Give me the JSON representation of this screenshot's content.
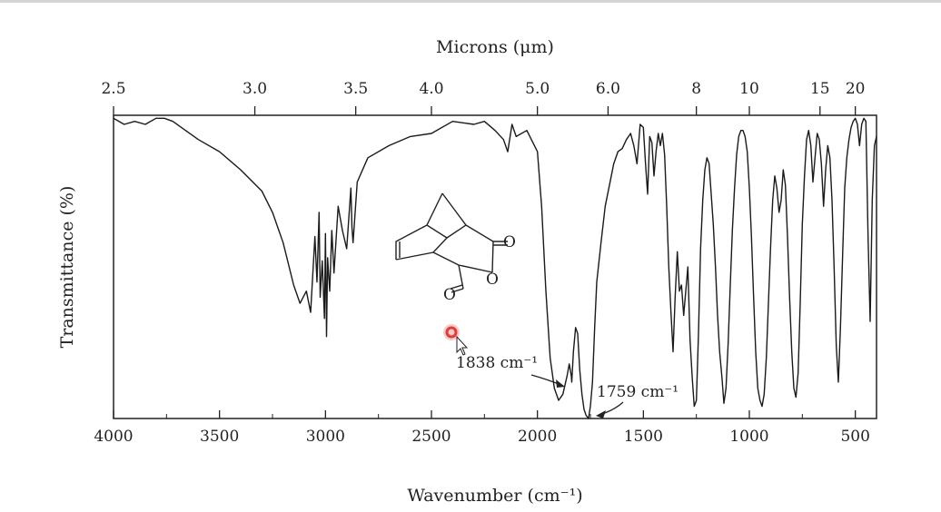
{
  "chart_data": {
    "type": "line",
    "title": "",
    "xlabel": "Wavenumber (cm⁻¹)",
    "ylabel": "Transmittance (%)",
    "top_axis_label": "Microns (μm)",
    "x_reversed": true,
    "xlim": [
      4000,
      400
    ],
    "ylim": [
      0,
      100
    ],
    "grid": false,
    "x_ticks": [
      4000,
      3500,
      3000,
      2500,
      2000,
      1500,
      1000,
      500
    ],
    "top_ticks": [
      "2.5",
      "3.0",
      "3.5",
      "4.0",
      "5.0",
      "6.0",
      "8",
      "10",
      "15",
      "20"
    ],
    "series": [
      {
        "x": [
          4000,
          3950,
          3900,
          3850,
          3800,
          3760,
          3720,
          3680,
          3600,
          3500,
          3400,
          3300,
          3250,
          3200,
          3150,
          3120,
          3090,
          3070,
          3050,
          3040,
          3030,
          3025,
          3015,
          3005,
          3000,
          2995,
          2990,
          2980,
          2970,
          2960,
          2940,
          2920,
          2900,
          2880,
          2875,
          2870,
          2850,
          2800,
          2700,
          2600,
          2500,
          2400,
          2300,
          2250,
          2200,
          2160,
          2140,
          2120,
          2100,
          2050,
          2000,
          1980,
          1960,
          1940,
          1920,
          1900,
          1880,
          1860,
          1850,
          1840,
          1838,
          1835,
          1830,
          1820,
          1810,
          1800,
          1790,
          1780,
          1770,
          1759,
          1750,
          1740,
          1730,
          1720,
          1700,
          1680,
          1660,
          1640,
          1620,
          1600,
          1580,
          1560,
          1545,
          1530,
          1515,
          1500,
          1490,
          1480,
          1470,
          1460,
          1450,
          1440,
          1430,
          1420,
          1410,
          1400,
          1390,
          1380,
          1370,
          1360,
          1350,
          1340,
          1330,
          1320,
          1310,
          1300,
          1290,
          1280,
          1270,
          1260,
          1250,
          1240,
          1230,
          1220,
          1210,
          1200,
          1190,
          1180,
          1170,
          1160,
          1150,
          1140,
          1130,
          1120,
          1110,
          1100,
          1090,
          1080,
          1070,
          1060,
          1050,
          1040,
          1030,
          1020,
          1010,
          1000,
          990,
          980,
          970,
          960,
          950,
          940,
          930,
          920,
          910,
          900,
          890,
          880,
          870,
          860,
          850,
          840,
          830,
          820,
          810,
          800,
          790,
          780,
          770,
          760,
          750,
          740,
          730,
          720,
          710,
          700,
          690,
          680,
          670,
          660,
          650,
          640,
          630,
          620,
          610,
          600,
          590,
          580,
          570,
          560,
          550,
          540,
          530,
          520,
          510,
          500,
          490,
          480,
          470,
          460,
          450,
          440,
          430,
          420,
          410,
          400
        ],
        "y": [
          99,
          97,
          98,
          97,
          99,
          99,
          98,
          96,
          92,
          88,
          82,
          75,
          68,
          58,
          44,
          38,
          42,
          35,
          60,
          45,
          68,
          40,
          52,
          33,
          61,
          27,
          53,
          42,
          62,
          48,
          70,
          62,
          56,
          76,
          63,
          58,
          78,
          86,
          90,
          93,
          94,
          98,
          97,
          98,
          95,
          92,
          88,
          97,
          93,
          95,
          88,
          70,
          42,
          20,
          10,
          6,
          8,
          14,
          18,
          14,
          12,
          16,
          22,
          30,
          28,
          16,
          8,
          3,
          1,
          0,
          4,
          12,
          30,
          45,
          58,
          70,
          77,
          84,
          88,
          89,
          92,
          94,
          90,
          84,
          97,
          96,
          84,
          74,
          93,
          91,
          80,
          88,
          94,
          90,
          94,
          87,
          70,
          50,
          35,
          22,
          40,
          55,
          42,
          44,
          34,
          42,
          50,
          26,
          14,
          4,
          6,
          28,
          56,
          72,
          82,
          86,
          84,
          74,
          64,
          50,
          34,
          22,
          14,
          5,
          10,
          25,
          44,
          62,
          76,
          87,
          93,
          95,
          95,
          93,
          88,
          76,
          60,
          40,
          22,
          10,
          6,
          4,
          8,
          20,
          38,
          56,
          72,
          80,
          76,
          68,
          72,
          82,
          77,
          60,
          40,
          22,
          10,
          7,
          15,
          38,
          64,
          80,
          92,
          95,
          90,
          78,
          86,
          94,
          92,
          84,
          70,
          82,
          90,
          86,
          72,
          50,
          24,
          12,
          30,
          54,
          76,
          86,
          92,
          96,
          98,
          99,
          97,
          90,
          97,
          99,
          98,
          60,
          32,
          72,
          90,
          93
        ]
      }
    ],
    "annotations": [
      {
        "text": "1838 cm⁻¹",
        "wavenumber": 1838
      },
      {
        "text": "1759 cm⁻¹",
        "wavenumber": 1759
      }
    ],
    "structure_labels": [
      "O",
      "O",
      "O"
    ]
  },
  "ui": {
    "cursor": "arrow-pointer",
    "highlight_color": "#e53935"
  }
}
